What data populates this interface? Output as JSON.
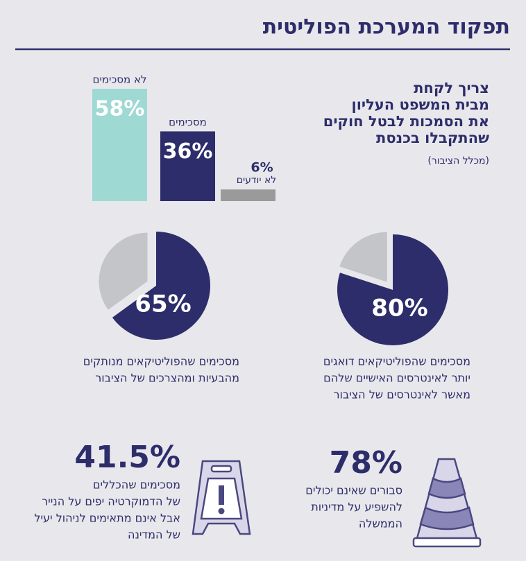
{
  "title": "תפקוד המערכת הפוליטית",
  "chart_data": [
    {
      "type": "bar",
      "title": [
        "צריך לקחת",
        "מבית המשפט העליון",
        "את הסמכות לבטל חוקים",
        "שהתקבלו בכנסת"
      ],
      "subtitle": "(מכלל הציבור)",
      "categories": [
        "לא מסכימים",
        "מסכימים",
        "לא יודעים"
      ],
      "values": [
        58,
        36,
        6
      ],
      "value_labels": [
        "58%",
        "36%",
        "6%"
      ],
      "colors": [
        "#9fd9d3",
        "#2e2d6b",
        "#9a9a9a"
      ]
    },
    {
      "type": "pie",
      "values": [
        65,
        35
      ],
      "value_labels": [
        "65%",
        null
      ],
      "colors": [
        "#2e2d6b",
        "#c4c5c9"
      ],
      "caption": [
        "מסכימים שהפוליטיקאים מנותקים",
        "מהבעיות ומהצרכים של הציבור"
      ]
    },
    {
      "type": "pie",
      "values": [
        80,
        20
      ],
      "value_labels": [
        "80%",
        null
      ],
      "colors": [
        "#2e2d6b",
        "#c4c5c9"
      ],
      "caption": [
        "מסכימים שהפוליטיקאים דואגים",
        "יותר לאינטרסים האישיים שלהם",
        "מאשר לאינטרסים של הציבור"
      ]
    }
  ],
  "stats": [
    {
      "value": "78%",
      "lines": [
        "סבורים שאינם יכולים",
        "להשפיע על מדיניות",
        "הממשלה"
      ]
    },
    {
      "value": "41.5%",
      "lines": [
        "מסכימים שהכללים",
        "של הדמוקרטיה יפים על הנייר",
        "אבל אינם מתאימים לניהול יעיל",
        "של המדינה"
      ]
    }
  ]
}
